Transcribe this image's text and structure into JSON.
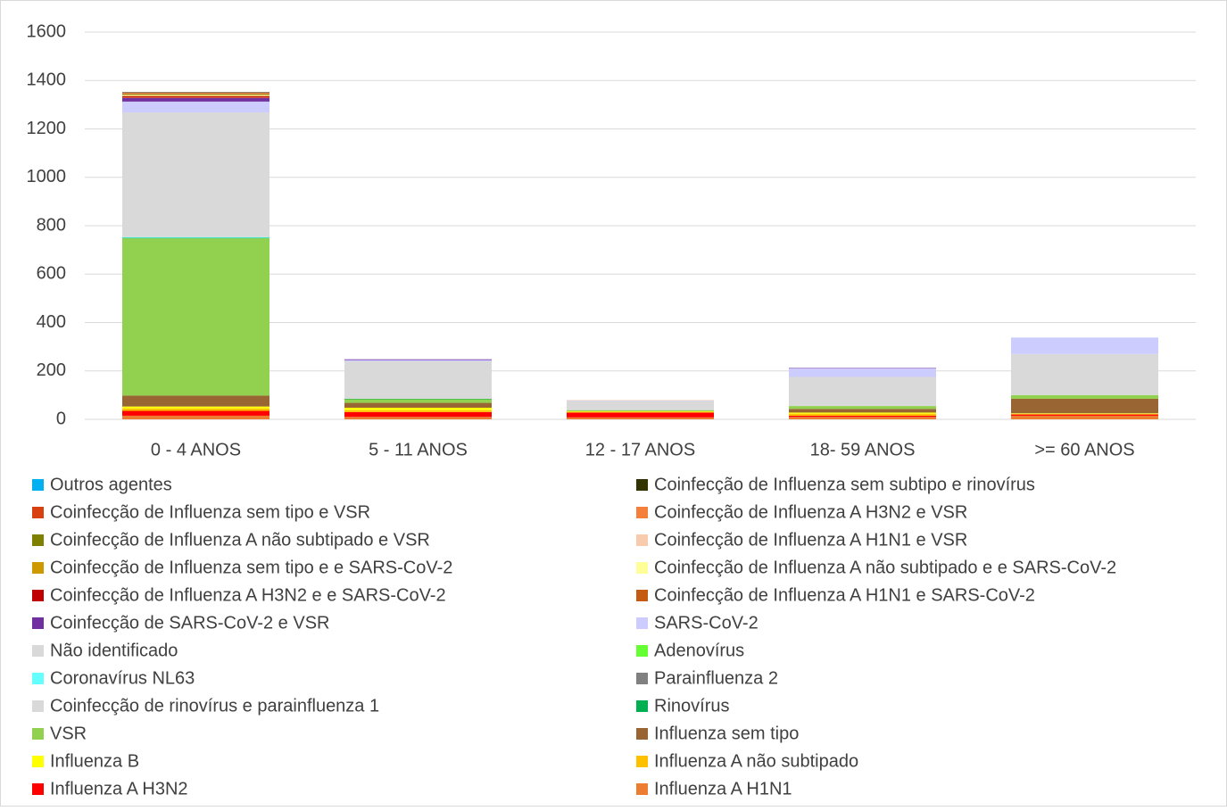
{
  "chart_data": {
    "type": "stacked_bar",
    "categories": [
      "0 - 4 ANOS",
      "5 - 11 ANOS",
      "12 - 17 ANOS",
      "18- 59 ANOS",
      ">= 60 ANOS"
    ],
    "ylim": [
      0,
      1600
    ],
    "yticks": [
      0,
      200,
      400,
      600,
      800,
      1000,
      1200,
      1400,
      1600
    ],
    "grid": true,
    "series": [
      {
        "name": "Influenza A H1N1",
        "color": "#ed7d31",
        "values": [
          15,
          10,
          8,
          10,
          15
        ]
      },
      {
        "name": "Influenza A H3N2",
        "color": "#ff0000",
        "values": [
          20,
          20,
          20,
          5,
          5
        ]
      },
      {
        "name": "Influenza A não subtipado",
        "color": "#ffc000",
        "values": [
          10,
          8,
          3,
          8,
          3
        ]
      },
      {
        "name": "Influenza B",
        "color": "#ffff00",
        "values": [
          8,
          10,
          2,
          5,
          2
        ]
      },
      {
        "name": "Influenza sem tipo",
        "color": "#996633",
        "values": [
          45,
          20,
          0,
          15,
          60
        ]
      },
      {
        "name": "VSR",
        "color": "#92d050",
        "values": [
          650,
          15,
          5,
          12,
          15
        ]
      },
      {
        "name": "Rinovírus",
        "color": "#00b050",
        "values": [
          2,
          2,
          0,
          0,
          0
        ]
      },
      {
        "name": "Coinfecção de rinovírus e parainfluenza 1",
        "color": "#d9d9d9",
        "values": [
          0,
          0,
          0,
          0,
          0
        ]
      },
      {
        "name": "Parainfluenza 2",
        "color": "#808080",
        "values": [
          0,
          0,
          0,
          0,
          0
        ]
      },
      {
        "name": "Coronavírus NL63",
        "color": "#66ffff",
        "values": [
          3,
          0,
          0,
          0,
          0
        ]
      },
      {
        "name": "Adenovírus",
        "color": "#66ff33",
        "values": [
          0,
          0,
          0,
          0,
          0
        ]
      },
      {
        "name": "Não identificado",
        "color": "#d9d9d9",
        "values": [
          515,
          155,
          38,
          120,
          170
        ]
      },
      {
        "name": "SARS-CoV-2",
        "color": "#ccccff",
        "values": [
          45,
          5,
          2,
          35,
          68
        ]
      },
      {
        "name": "Coinfecção de SARS-CoV-2 e VSR",
        "color": "#7030a0",
        "values": [
          15,
          3,
          0,
          2,
          0
        ]
      },
      {
        "name": "Coinfecção de Influenza A H1N1 e  SARS-CoV-2",
        "color": "#c55a11",
        "values": [
          2,
          0,
          0,
          0,
          0
        ]
      },
      {
        "name": "Coinfecção de Influenza A H3N2 e e SARS-CoV-2",
        "color": "#c00000",
        "values": [
          5,
          0,
          0,
          0,
          0
        ]
      },
      {
        "name": "Coinfecção de Influenza A não subtipado e e SARS-CoV-2",
        "color": "#ffff99",
        "values": [
          2,
          0,
          0,
          0,
          0
        ]
      },
      {
        "name": "Coinfecção de Influenza sem tipo e e SARS-CoV-2",
        "color": "#cc9900",
        "values": [
          3,
          0,
          0,
          0,
          0
        ]
      },
      {
        "name": "Coinfecção de Influenza A H1N1 e  VSR",
        "color": "#f8cbad",
        "values": [
          2,
          0,
          2,
          0,
          0
        ]
      },
      {
        "name": "Coinfecção de Influenza A não subtipado e  VSR",
        "color": "#808000",
        "values": [
          3,
          0,
          0,
          0,
          0
        ]
      },
      {
        "name": "Coinfecção de Influenza A H3N2 e  VSR",
        "color": "#f4803c",
        "values": [
          3,
          0,
          0,
          0,
          0
        ]
      },
      {
        "name": "Coinfecção de Influenza sem tipo e  VSR",
        "color": "#d9400f",
        "values": [
          2,
          0,
          0,
          0,
          0
        ]
      },
      {
        "name": "Coinfecção de Influenza sem subtipo e  rinovírus",
        "color": "#333300",
        "values": [
          2,
          0,
          0,
          0,
          0
        ]
      },
      {
        "name": "Outros agentes",
        "color": "#00b0f0",
        "values": [
          0,
          0,
          0,
          0,
          0
        ]
      }
    ]
  }
}
